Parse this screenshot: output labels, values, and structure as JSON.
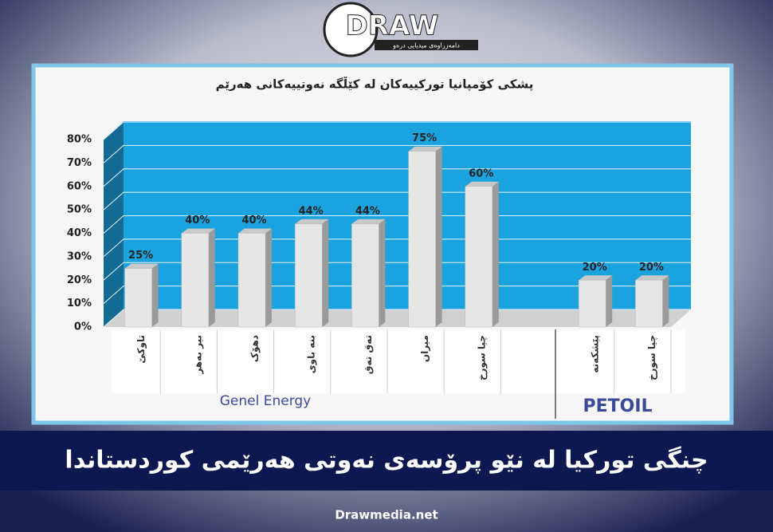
{
  "logo": {
    "name": "DRAW",
    "tagline": "دامەزراوەی میدیایی درەو"
  },
  "chart_data": {
    "type": "bar",
    "title": "پشکی کۆمپانیا تورکییەکان لە کێڵگە نەوتییەکانی هەرێم",
    "categories": [
      "تاوکێ",
      "بیر بەهر",
      "دهۆک",
      "بنە باوی",
      "تەق تەق",
      "میران",
      "چیا سورخ",
      null,
      "پێشکەتە",
      "چیا سورخ"
    ],
    "values": [
      25,
      40,
      40,
      44,
      44,
      75,
      60,
      null,
      20,
      20
    ],
    "value_labels": [
      "25%",
      "40%",
      "40%",
      "44%",
      "44%",
      "75%",
      "60%",
      null,
      "20%",
      "20%"
    ],
    "color": "#e6e6e6",
    "ylim": [
      0,
      80
    ],
    "yticks": [
      {
        "value": 0,
        "label": "0%"
      },
      {
        "value": 10,
        "label": "10%"
      },
      {
        "value": 20,
        "label": "20%"
      },
      {
        "value": 30,
        "label": "30%"
      },
      {
        "value": 40,
        "label": "40%"
      },
      {
        "value": 50,
        "label": "50%"
      },
      {
        "value": 60,
        "label": "60%"
      },
      {
        "value": 70,
        "label": "70%"
      },
      {
        "value": 80,
        "label": "80%"
      }
    ],
    "grid": true,
    "company_logos": [
      "Genel Energy",
      "PETOIL"
    ]
  },
  "headline": "چنگی تورکیا لە نێو پرۆسەی نەوتی هەرێمی کوردستاندا",
  "footer": "Drawmedia.net"
}
